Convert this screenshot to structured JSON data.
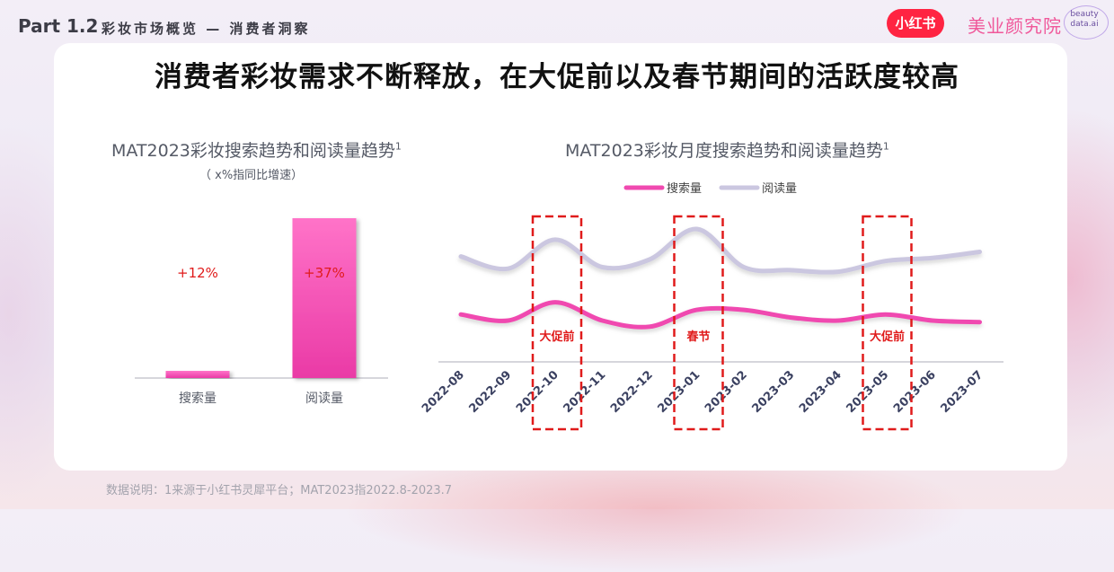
{
  "header": {
    "part": "Part 1.2",
    "section": "彩妆市场概览 — 消费者洞察",
    "xhs_logo": "小红书",
    "brand_name": "美业颜究院",
    "brand_sub_1": "beauty",
    "brand_sub_2": "data.ai"
  },
  "headline": "消费者彩妆需求不断释放，在大促前以及春节期间的活跃度较高",
  "colors": {
    "search": "#f04ab0",
    "read": "#cbc7e0",
    "bar_top": "#ff73c8",
    "bar_bottom": "#ea3aa6",
    "highlight": "#e01b1b"
  },
  "chart_data": [
    {
      "type": "bar",
      "title": "MAT2023彩妆搜索趋势和阅读量趋势",
      "title_sup": "1",
      "subtitle": "（ x%指同比增速）",
      "categories": [
        "搜索量",
        "阅读量"
      ],
      "values": [
        12,
        37
      ],
      "value_labels": [
        "+12%",
        "+37%"
      ],
      "bar_heights_relative": [
        0.045,
        1.0
      ]
    },
    {
      "type": "line",
      "title": "MAT2023彩妆月度搜索趋势和阅读量趋势",
      "title_sup": "1",
      "legend": [
        "搜索量",
        "阅读量"
      ],
      "legend_position": "top-center",
      "x": [
        "2022-08",
        "2022-09",
        "2022-10",
        "2022-11",
        "2022-12",
        "2023-01",
        "2023-02",
        "2023-03",
        "2023-04",
        "2023-05",
        "2023-06",
        "2023-07"
      ],
      "y_axis_visible": false,
      "series": [
        {
          "name": "阅读量",
          "values": [
            0.82,
            0.74,
            0.93,
            0.75,
            0.8,
            1.0,
            0.75,
            0.73,
            0.72,
            0.79,
            0.81,
            0.85
          ]
        },
        {
          "name": "搜索量",
          "values": [
            0.44,
            0.4,
            0.52,
            0.4,
            0.36,
            0.47,
            0.47,
            0.42,
            0.4,
            0.44,
            0.4,
            0.39
          ]
        }
      ],
      "highlights": [
        {
          "label": "大促前",
          "x": "2022-10"
        },
        {
          "label": "春节",
          "x": "2023-01"
        },
        {
          "label": "大促前",
          "x": "2023-05"
        }
      ]
    }
  ],
  "footnote": "数据说明：1来源于小红书灵犀平台；MAT2023指2022.8-2023.7"
}
